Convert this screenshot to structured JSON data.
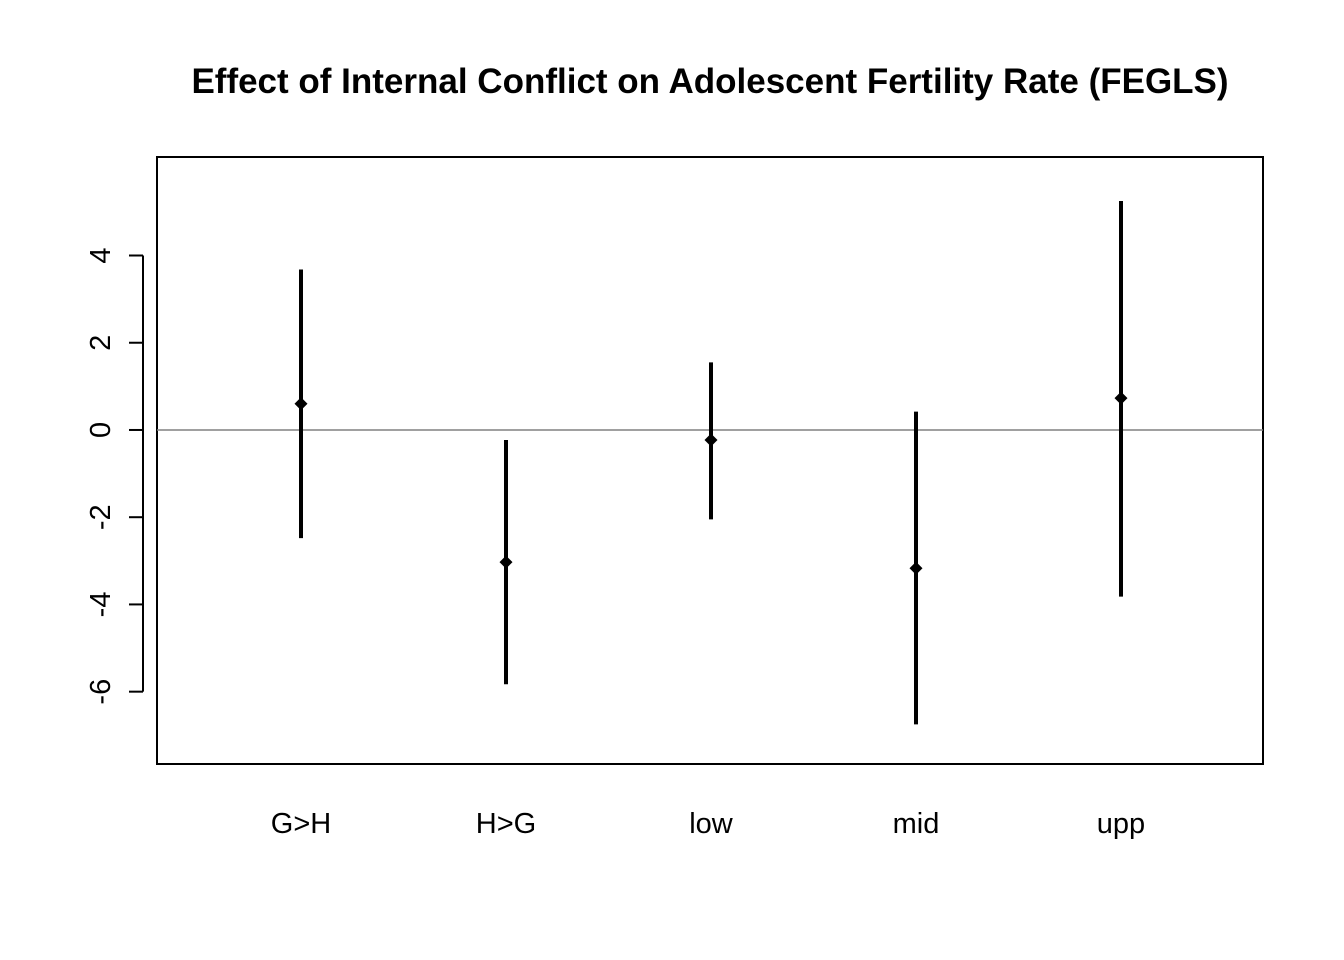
{
  "chart_data": {
    "type": "errorbar",
    "title": "Effect of Internal Conflict on Adolescent Fertility Rate (FEGLS)",
    "xlabel": "",
    "ylabel": "",
    "categories": [
      "G>H",
      "H>G",
      "low",
      "mid",
      "upp"
    ],
    "estimates": [
      0.6,
      -3.03,
      -0.23,
      -3.17,
      0.73
    ],
    "lower": [
      -2.48,
      -5.83,
      -2.05,
      -6.75,
      -3.82
    ],
    "upper": [
      3.68,
      -0.23,
      1.55,
      0.42,
      5.25
    ],
    "ylim": [
      -7.2,
      5.8
    ],
    "yticks": [
      -6,
      -4,
      -2,
      0,
      2,
      4
    ],
    "reference_line": 0,
    "grid": false,
    "legend": "none"
  }
}
